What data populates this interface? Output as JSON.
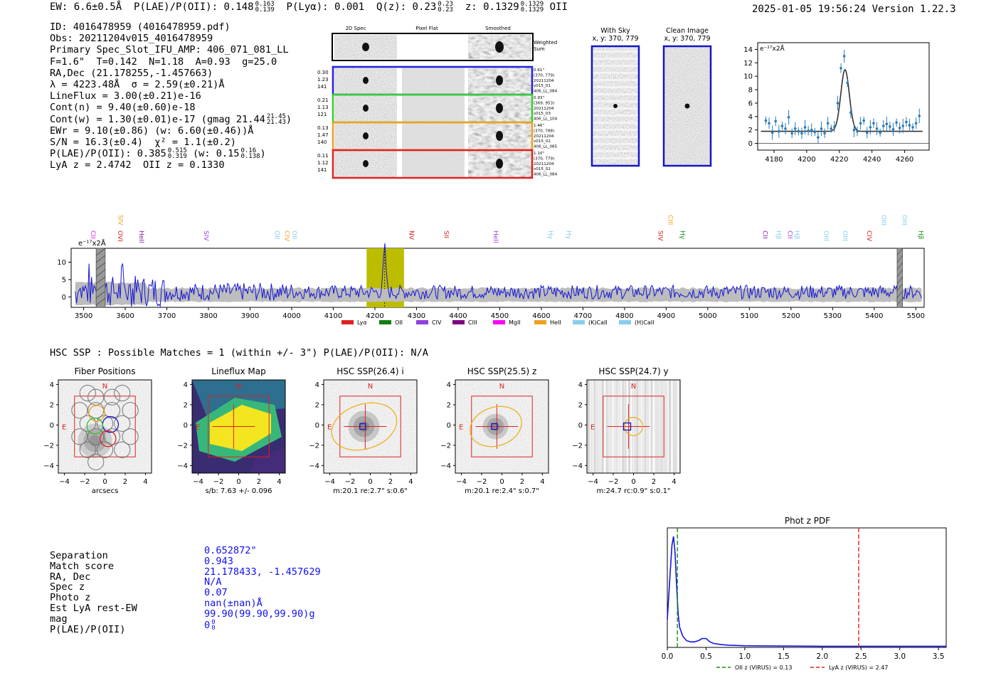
{
  "header": {
    "ew_label": "EW: 6.6±0.5Å",
    "plae_label": "P(LAE)/P(OII): 0.148",
    "plae_hi": "0.163",
    "plae_lo": "0.139",
    "plya_label": "P(Lyα): 0.001",
    "q_label": "Q(z): 0.23",
    "q_hi": "0.23",
    "q_lo": "0.23",
    "z_label": "z: 0.1329",
    "z_hi": "0.1329",
    "z_lo": "0.1329",
    "z_line": "OII",
    "timestamp": "2025-01-05 19:56:24",
    "version": "Version 1.22.3"
  },
  "info": {
    "id": "ID: 4016478959 (4016478959.pdf)",
    "obs": "Obs: 20211204v015_4016478959",
    "primary": "Primary Spec_Slot_IFU_AMP: 406_071_081_LL",
    "params": "F=1.6\"  T=0.142  N=1.18  A=0.93  g=25.0",
    "radec": "RA,Dec (21.178255,-1.457663)",
    "lambda": "λ = 4223.48Å  σ = 2.59(±0.21)Å",
    "lineflux": "LineFlux = 3.00(±0.21)e-16",
    "contn": "Cont(n) = 9.40(±0.60)e-18",
    "contw": "Cont(w) = 1.30(±0.01)e-17 (gmag 21.44",
    "gmag_hi": "21.45",
    "gmag_lo": "21.43",
    "contw_close": ")",
    "ewr": "EWr = 9.10(±0.86) (w: 6.60(±0.46))Å",
    "sn": "S/N = 16.3(±0.4)  χ² = 1.1(±0.2)",
    "plae": "P(LAE)/P(OII): 0.385",
    "plae_hi": "0.515",
    "plae_lo": "0.319",
    "plae_w": "(w: 0.15",
    "plae_w_hi": "0.16",
    "plae_w_lo": "0.138",
    "plae_w_close": ")",
    "lya": "LyA z = 2.4742  OII z = 0.1330"
  },
  "spec2d": {
    "col_labels": [
      "2D Spec",
      "Pixel Flat",
      "Smoothed"
    ],
    "weighted_label_1": "Weighted",
    "weighted_label_2": "Sum",
    "rows": [
      {
        "left": [
          "0.30",
          "1.23",
          "141"
        ],
        "right": [
          "0.61\"",
          "(370, 779)",
          "20211204",
          "v015_01",
          "406_LL_084"
        ],
        "color": "#2020e0"
      },
      {
        "left": [
          "0.21",
          "1.13",
          "121"
        ],
        "right": [
          "0.93\"",
          "(369, 953)",
          "20211204",
          "v015_03",
          "406_LL_104"
        ],
        "color": "#30d030"
      },
      {
        "left": [
          "0.13",
          "1.47",
          "140"
        ],
        "right": [
          "1.46\"",
          "(370, 788)",
          "20211204",
          "v015_02",
          "406_LL_085"
        ],
        "color": "#f0a020"
      },
      {
        "left": [
          "0.11",
          "1.12",
          "141"
        ],
        "right": [
          "1.10\"",
          "(370, 779)",
          "20211204",
          "v015_02",
          "406_LL_084"
        ],
        "color": "#e02020"
      }
    ]
  },
  "cutouts": {
    "with_sky_1": "With Sky",
    "with_sky_2": "x, y: 370, 779",
    "clean_1": "Clean Image",
    "clean_2": "x, y: 370, 779"
  },
  "line_fit": {
    "unit": "e⁻¹⁷x2Å",
    "x_ticks": [
      "4180",
      "4200",
      "4220",
      "4240",
      "4260"
    ],
    "y_ticks": [
      "0",
      "2",
      "4",
      "6",
      "8",
      "10",
      "12",
      "14"
    ]
  },
  "spectrum": {
    "unit": "e⁻¹⁷x2Å",
    "x_ticks": [
      "3500",
      "3600",
      "3700",
      "3800",
      "3900",
      "4000",
      "4100",
      "4200",
      "4300",
      "4400",
      "4500",
      "4600",
      "4700",
      "4800",
      "4900",
      "5000",
      "5100",
      "5200",
      "5300",
      "5400",
      "5500"
    ],
    "y_ticks": [
      "0",
      "5",
      "10"
    ],
    "upper_line_labels": [
      {
        "t": "SIV",
        "c": "#f0a020"
      },
      {
        "t": "CIII",
        "c": "#f0a020"
      },
      {
        "t": "OIII",
        "c": "#87ceeb"
      },
      {
        "t": "OIII",
        "c": "#87ceeb"
      }
    ],
    "lower_line_labels": [
      {
        "t": "CII",
        "c": "#e020e0"
      },
      {
        "t": "OVI",
        "c": "#e02020"
      },
      {
        "t": "HeII",
        "c": "#8020a0"
      },
      {
        "t": "SIV",
        "c": "#a040e0"
      },
      {
        "t": "OII",
        "c": "#87ceeb"
      },
      {
        "t": "CIV",
        "c": "#f0a020"
      },
      {
        "t": "OII",
        "c": "#87ceeb"
      },
      {
        "t": "NV",
        "c": "#e02020"
      },
      {
        "t": "SII",
        "c": "#e02020"
      },
      {
        "t": "HeII",
        "c": "#a040e0"
      },
      {
        "t": "Hγ",
        "c": "#87ceeb"
      },
      {
        "t": "Hγ",
        "c": "#87ceeb"
      },
      {
        "t": "SIV",
        "c": "#e02020"
      },
      {
        "t": "Hγ",
        "c": "#109010"
      },
      {
        "t": "CII",
        "c": "#8020a0"
      },
      {
        "t": "Hβ",
        "c": "#87ceeb"
      },
      {
        "t": "CII",
        "c": "#a040e0"
      },
      {
        "t": "Hβ",
        "c": "#87ceeb"
      },
      {
        "t": "OIII",
        "c": "#87ceeb"
      },
      {
        "t": "OIII",
        "c": "#87ceeb"
      },
      {
        "t": "CIV",
        "c": "#e02020"
      },
      {
        "t": "Hβ",
        "c": "#109010"
      }
    ],
    "legend": [
      {
        "t": "Lyα",
        "c": "#e02020"
      },
      {
        "t": "OII",
        "c": "#108010"
      },
      {
        "t": "CIV",
        "c": "#9040e0"
      },
      {
        "t": "CIII",
        "c": "#800080"
      },
      {
        "t": "MgII",
        "c": "#ff00ff"
      },
      {
        "t": "HeII",
        "c": "#f0a020"
      },
      {
        "t": "(K)CaII",
        "c": "#87ceeb"
      },
      {
        "t": "(H)CaII",
        "c": "#87ceeb"
      }
    ]
  },
  "hsc": {
    "title": "HSC SSP : Possible Matches = 1 (within +/- 3\")  P(LAE)/P(OII): N/A",
    "compass_n": "N",
    "compass_e": "E",
    "ticks": [
      "4",
      "2",
      "0",
      "−2",
      "−4"
    ],
    "xticks": [
      "−4",
      "−2",
      "0",
      "2",
      "4"
    ],
    "panels": [
      {
        "title": "Fiber Positions",
        "caption": "arcsecs"
      },
      {
        "title": "Lineflux Map",
        "caption": "s/b: 7.63 +/- 0.096"
      },
      {
        "title": "HSC SSP(26.4) i",
        "caption": "m:20.1  re:2.7\"  s:0.6\""
      },
      {
        "title": "HSC SSP(25.5) z",
        "caption": "m:20.1  re:2.4\"  s:0.7\""
      },
      {
        "title": "HSC SSP(24.7) y",
        "caption": "m:24.7 rc:0.9\"  s:0.1\""
      }
    ]
  },
  "match": {
    "labels": [
      "Separation",
      "Match score",
      "RA, Dec",
      "Spec z",
      "Photo z",
      "Est LyA rest-EW",
      "mag",
      "P(LAE)/P(OII)"
    ],
    "values": [
      "0.652872\"",
      "0.943",
      "21.178433, -1.457629",
      "N/A",
      "0.07",
      "nan(±nan)Å",
      "99.90(99.90,99.90)g",
      "0"
    ],
    "plae_sup": "0",
    "plae_sub": "0"
  },
  "chart_data": [
    {
      "type": "line",
      "title": "Phot z PDF",
      "xlabel": "",
      "ylabel": "",
      "xlim": [
        0.0,
        3.6
      ],
      "x_ticks": [
        "0.0",
        "0.5",
        "1.0",
        "1.5",
        "2.0",
        "2.5",
        "3.0",
        "3.5"
      ],
      "x": [
        0.0,
        0.03,
        0.06,
        0.08,
        0.1,
        0.12,
        0.14,
        0.16,
        0.2,
        0.25,
        0.3,
        0.35,
        0.4,
        0.45,
        0.5,
        0.55,
        0.6,
        0.7,
        0.8,
        1.0,
        1.5,
        2.0,
        2.5,
        3.0,
        3.6
      ],
      "series": [
        {
          "name": "pdf",
          "values": [
            0.25,
            0.6,
            0.92,
            1.0,
            0.85,
            0.55,
            0.3,
            0.18,
            0.1,
            0.06,
            0.05,
            0.05,
            0.06,
            0.08,
            0.08,
            0.05,
            0.035,
            0.025,
            0.02,
            0.015,
            0.012,
            0.01,
            0.01,
            0.01,
            0.01
          ]
        }
      ],
      "vlines": [
        {
          "x": 0.13,
          "label": "OII z (VIRUS) = 0.13",
          "color": "#109010"
        },
        {
          "x": 2.47,
          "label": "LyA z (VIRUS) = 2.47",
          "color": "#e02020"
        }
      ]
    },
    {
      "type": "scatter",
      "title": "",
      "xlim": [
        4170,
        4275
      ],
      "ylim": [
        -1,
        15
      ],
      "model_center": 4223.5,
      "model_sigma": 2.6,
      "model_peak": 9.2,
      "model_base": 1.8,
      "points": [
        [
          4175,
          3.4
        ],
        [
          4177,
          3.0
        ],
        [
          4179,
          1.6
        ],
        [
          4181,
          3.3
        ],
        [
          4183,
          1.8
        ],
        [
          4185,
          2.6
        ],
        [
          4187,
          2.2
        ],
        [
          4189,
          3.9
        ],
        [
          4191,
          1.5
        ],
        [
          4193,
          2.2
        ],
        [
          4195,
          1.8
        ],
        [
          4197,
          1.5
        ],
        [
          4199,
          2.4
        ],
        [
          4201,
          1.9
        ],
        [
          4203,
          2.0
        ],
        [
          4205,
          1.7
        ],
        [
          4207,
          0.9
        ],
        [
          4209,
          2.2
        ],
        [
          4211,
          1.5
        ],
        [
          4213,
          3.0
        ],
        [
          4215,
          2.2
        ],
        [
          4217,
          2.5
        ],
        [
          4219,
          6.0
        ],
        [
          4221,
          11.2
        ],
        [
          4223,
          13.0
        ],
        [
          4225,
          9.0
        ],
        [
          4227,
          4.6
        ],
        [
          4229,
          2.0
        ],
        [
          4231,
          1.8
        ],
        [
          4233,
          3.0
        ],
        [
          4235,
          3.4
        ],
        [
          4237,
          1.6
        ],
        [
          4239,
          2.4
        ],
        [
          4241,
          3.0
        ],
        [
          4243,
          2.2
        ],
        [
          4245,
          1.6
        ],
        [
          4247,
          2.6
        ],
        [
          4249,
          2.9
        ],
        [
          4251,
          2.5
        ],
        [
          4253,
          2.1
        ],
        [
          4255,
          3.1
        ],
        [
          4257,
          2.3
        ],
        [
          4259,
          2.6
        ],
        [
          4261,
          3.2
        ],
        [
          4263,
          2.7
        ],
        [
          4265,
          2.4
        ],
        [
          4267,
          3.0
        ],
        [
          4269,
          4.1
        ]
      ]
    },
    {
      "type": "line",
      "title": "",
      "xlim": [
        3470,
        5520
      ],
      "ylim": [
        -3,
        14
      ],
      "highlight": [
        4180,
        4270
      ],
      "peak_x": 4223.5
    }
  ]
}
